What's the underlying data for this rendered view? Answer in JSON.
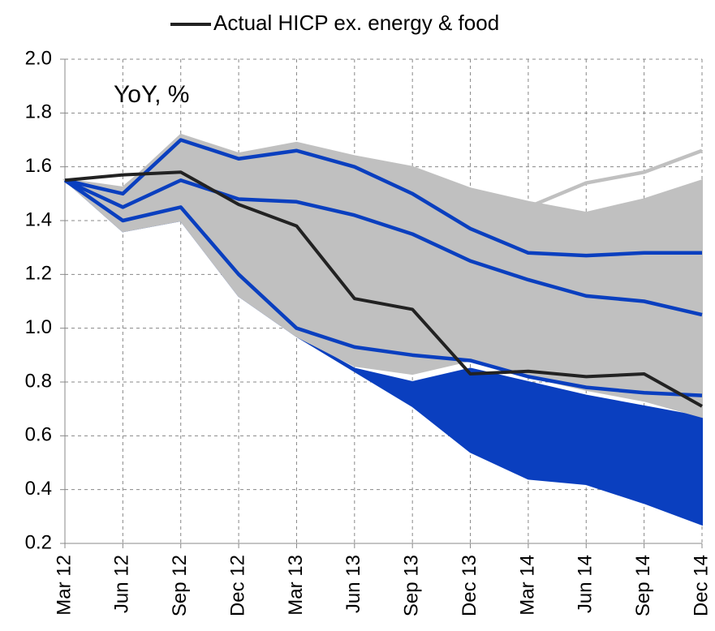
{
  "chart_data": {
    "type": "line",
    "annotation": "YoY, %",
    "categories": [
      "Mar 12",
      "Jun 12",
      "Sep 12",
      "Dec 12",
      "Mar 13",
      "Jun 13",
      "Sep 13",
      "Dec 13",
      "Mar 14",
      "Jun 14",
      "Sep 14",
      "Dec 14"
    ],
    "ylim": [
      0.2,
      2.0
    ],
    "yticks": [
      0.2,
      0.4,
      0.6,
      0.8,
      {
        "value": 1,
        "label": "1.0"
      },
      1.2,
      1.4,
      1.6,
      1.8,
      {
        "value": 2,
        "label": "2.0"
      }
    ],
    "grid": true,
    "legend": "top",
    "bands": [
      {
        "color": "#0a3fbf",
        "upper": [
          1.55,
          1.36,
          1.4,
          1.12,
          0.97,
          0.85,
          0.8,
          0.85,
          0.8,
          0.75,
          0.71,
          0.67
        ],
        "lower": [
          1.55,
          1.36,
          1.4,
          1.12,
          0.97,
          0.84,
          0.71,
          0.54,
          0.44,
          0.42,
          0.35,
          0.27
        ]
      },
      {
        "color": "#c0c0c0",
        "upper": [
          1.55,
          1.52,
          1.72,
          1.65,
          1.69,
          1.64,
          1.6,
          1.52,
          1.47,
          1.43,
          1.48,
          1.55
        ],
        "lower": [
          1.55,
          1.36,
          1.4,
          1.12,
          0.97,
          0.86,
          0.83,
          0.88,
          0.82,
          0.77,
          0.73,
          0.67
        ]
      }
    ],
    "series": [
      {
        "name": "Actual HICP ex. energy & food",
        "color": "#222222",
        "values": [
          1.55,
          1.57,
          1.58,
          1.46,
          1.38,
          1.11,
          1.07,
          0.83,
          0.84,
          0.82,
          0.83,
          0.71
        ]
      },
      {
        "color": "#c0c0c0",
        "values": [
          1.55,
          1.52,
          1.7,
          1.6,
          1.62,
          1.55,
          1.52,
          1.47,
          1.45,
          1.54,
          1.58,
          1.66
        ]
      },
      {
        "color": "#c0c0c0",
        "values": [
          1.55,
          1.5,
          1.65,
          1.55,
          1.55,
          1.5,
          1.45,
          1.4,
          1.3,
          1.35,
          1.45,
          1.5
        ]
      },
      {
        "color": "#0a3fbf",
        "values": [
          1.55,
          1.45,
          1.55,
          1.48,
          1.47,
          1.42,
          1.35,
          1.25,
          1.18,
          1.12,
          1.1,
          1.05
        ]
      },
      {
        "color": "#0a3fbf",
        "values": [
          1.55,
          1.4,
          1.45,
          1.2,
          1.0,
          0.93,
          0.9,
          0.88,
          0.82,
          0.78,
          0.76,
          0.75
        ]
      },
      {
        "color": "#0a3fbf",
        "values": [
          1.55,
          1.5,
          1.7,
          1.63,
          1.66,
          1.6,
          1.5,
          1.37,
          1.28,
          1.27,
          1.28,
          1.28
        ]
      }
    ]
  }
}
